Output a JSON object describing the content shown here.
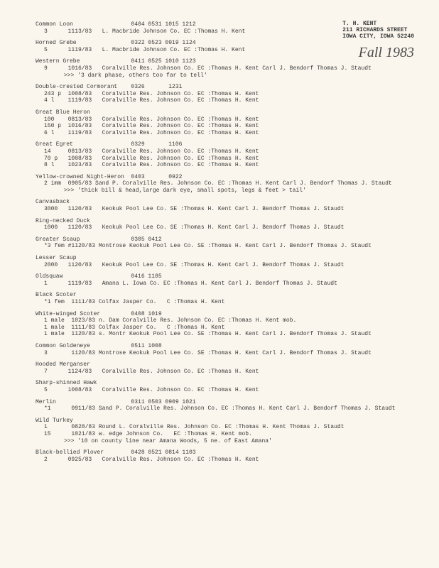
{
  "stamp": {
    "line1": "T. H. KENT",
    "line2": "211 RICHARDS STREET",
    "line3": "IOWA CITY, IOWA 52240"
  },
  "handwritten": "Fall 1983",
  "species": [
    {
      "name": "Common Loon",
      "codes": "0404 0531 1015 1212",
      "records": [
        "3      1113/83   L. Macbride Johnson Co. EC :Thomas H. Kent"
      ]
    },
    {
      "name": "Horned Grebe",
      "codes": "0322 0523 0919 1124",
      "records": [
        "5      1119/83   L. Macbride Johnson Co. EC :Thomas H. Kent"
      ]
    },
    {
      "name": "Western Grebe",
      "codes": "0411 0525 1010 1123",
      "records": [
        "9      1016/83   Coralville Res. Johnson Co. EC :Thomas H. Kent Carl J. Bendorf Thomas J. Staudt"
      ],
      "note": ">>> '3 dark phase, others too far to tell'"
    },
    {
      "name": "Double-crested Cormorant",
      "codes": "0326       1231",
      "records": [
        "243 p  1008/83   Coralville Res. Johnson Co. EC :Thomas H. Kent",
        "4 l    1119/83   Coralville Res. Johnson Co. EC :Thomas H. Kent"
      ]
    },
    {
      "name": "Great Blue Heron",
      "codes": "",
      "records": [
        "100    0813/83   Coralville Res. Johnson Co. EC :Thomas H. Kent",
        "150 p  1016/83   Coralville Res. Johnson Co. EC :Thomas H. Kent",
        "6 l    1119/83   Coralville Res. Johnson Co. EC :Thomas H. Kent"
      ]
    },
    {
      "name": "Great Egret",
      "codes": "0329       1106",
      "records": [
        "14     0813/83   Coralville Res. Johnson Co. EC :Thomas H. Kent",
        "70 p   1008/83   Coralville Res. Johnson Co. EC :Thomas H. Kent",
        "8 l    1023/83   Coralville Res. Johnson Co. EC :Thomas H. Kent"
      ]
    },
    {
      "name": "Yellow-crowned Night-Heron",
      "codes": "0403       0922",
      "records": [
        "2 imm  0905/83 Sand P. Coralville Res. Johnson Co. EC :Thomas H. Kent Carl J. Bendorf Thomas J. Staudt"
      ],
      "note": ">>> 'thick bill & head,large dark eye, small spots, legs & feet > tail'"
    },
    {
      "name": "Canvasback",
      "codes": "",
      "records": [
        "3000   1120/83   Keokuk Pool Lee Co. SE :Thomas H. Kent Carl J. Bendorf Thomas J. Staudt"
      ]
    },
    {
      "name": "Ring-necked Duck",
      "codes": "",
      "records": [
        "1000   1120/83   Keokuk Pool Lee Co. SE :Thomas H. Kent Carl J. Bendorf Thomas J. Staudt"
      ]
    },
    {
      "name": "Greater Scaup",
      "codes": "0305 0412",
      "records": [
        "*3 fem #1120/83 Montrose Keokuk Pool Lee Co. SE :Thomas H. Kent Carl J. Bendorf Thomas J. Staudt"
      ]
    },
    {
      "name": "Lesser Scaup",
      "codes": "",
      "records": [
        "2000   1120/83   Keokuk Pool Lee Co. SE :Thomas H. Kent Carl J. Bendorf Thomas J. Staudt"
      ]
    },
    {
      "name": "Oldsquaw",
      "codes": "0416 1105",
      "records": [
        "1      1119/83   Amana L. Iowa Co. EC :Thomas H. Kent Carl J. Bendorf Thomas J. Staudt"
      ]
    },
    {
      "name": "Black Scoter",
      "codes": "",
      "records": [
        "*1 fem  1111/83 Colfax Jasper Co.   C :Thomas H. Kent"
      ]
    },
    {
      "name": "White-winged Scoter",
      "codes": "0408 1019",
      "records": [
        "1 male  1023/83 n. Dam Coralville Res. Johnson Co. EC :Thomas H. Kent mob.",
        "1 male  1111/83 Colfax Jasper Co.   C :Thomas H. Kent",
        "1 male  1120/83 s. Montr Keokuk Pool Lee Co. SE :Thomas H. Kent Carl J. Bendorf Thomas J. Staudt"
      ]
    },
    {
      "name": "Common Goldeneye",
      "codes": "0511 1008",
      "records": [
        "3       1120/83 Montrose Keokuk Pool Lee Co. SE :Thomas H. Kent Carl J. Bendorf Thomas J. Staudt"
      ]
    },
    {
      "name": "Hooded Merganser",
      "codes": "",
      "records": [
        "7      1124/83   Coralville Res. Johnson Co. EC :Thomas H. Kent"
      ]
    },
    {
      "name": "Sharp-shinned Hawk",
      "codes": "",
      "records": [
        "5      1008/83   Coralville Res. Johnson Co. EC :Thomas H. Kent"
      ]
    },
    {
      "name": "Merlin",
      "codes": "0311 0503 0909 1021",
      "records": [
        "*1      0911/83 Sand P. Coralville Res. Johnson Co. EC :Thomas H. Kent Carl J. Bendorf Thomas J. Staudt"
      ]
    },
    {
      "name": "Wild Turkey",
      "codes": "",
      "records": [
        "1       0828/83 Round L. Coralville Res. Johnson Co. EC :Thomas H. Kent Thomas J. Staudt",
        "15      1021/83 w. edge Johnson Co.   EC :Thomas H. Kent mob."
      ],
      "note": ">>> '10 on county line near Amana Woods, 5 ne. of East Amana'"
    },
    {
      "name": "Black-bellied Plover",
      "codes": "0428 0521 0814 1103",
      "records": [
        "2      0925/83   Coralville Res. Johnson Co. EC :Thomas H. Kent"
      ]
    }
  ]
}
